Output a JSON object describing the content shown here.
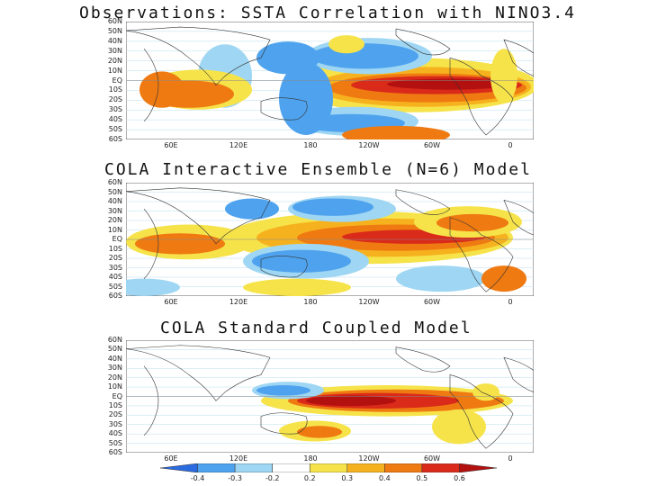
{
  "titles": [
    "Observations: SSTA Correlation with NINO3.4",
    "COLA Interactive Ensemble (N=6) Model",
    "COLA Standard Coupled Model"
  ],
  "lat_labels": [
    "60N",
    "50N",
    "40N",
    "30N",
    "20N",
    "10N",
    "EQ",
    "10S",
    "20S",
    "30S",
    "40S",
    "50S",
    "60S"
  ],
  "lon_labels": [
    "60E",
    "120E",
    "180",
    "120W",
    "60W",
    "0"
  ],
  "colorbar": {
    "labels": [
      "-0.4",
      "-0.3",
      "-0.2",
      "0.2",
      "0.3",
      "0.4",
      "0.5",
      "0.6"
    ],
    "colors": [
      "#2b6be0",
      "#4fa3ee",
      "#9fd6f3",
      "#ffffff",
      "#f6e34a",
      "#f6b21e",
      "#ef7a12",
      "#d92a1a",
      "#b31010"
    ]
  }
}
